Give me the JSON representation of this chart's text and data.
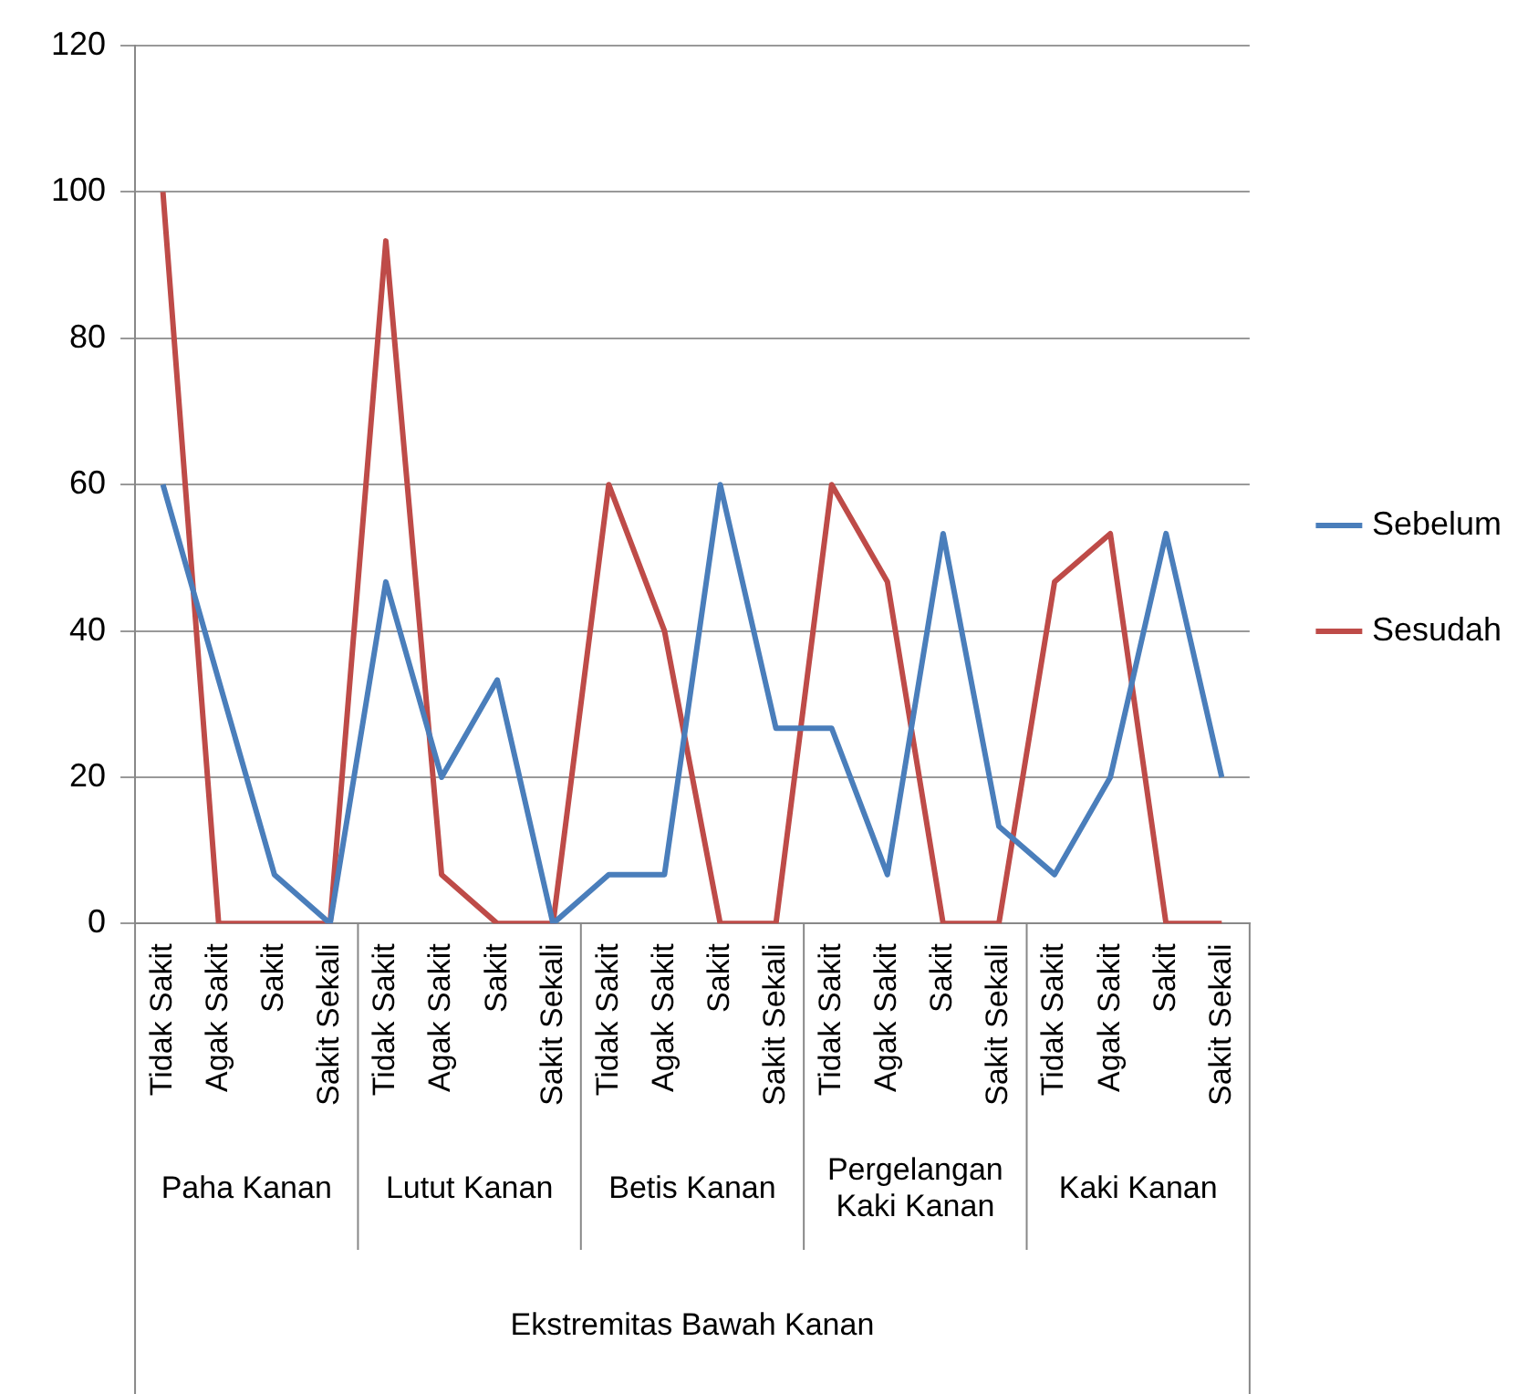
{
  "chart_data": {
    "type": "line",
    "categories": [
      "Tidak Sakit",
      "Agak Sakit",
      "Sakit",
      "Sakit Sekali",
      "Tidak Sakit",
      "Agak Sakit",
      "Sakit",
      "Sakit Sekali",
      "Tidak Sakit",
      "Agak Sakit",
      "Sakit",
      "Sakit Sekali",
      "Tidak Sakit",
      "Agak Sakit",
      "Sakit",
      "Sakit Sekali",
      "Tidak Sakit",
      "Agak Sakit",
      "Sakit",
      "Sakit Sekali"
    ],
    "annotations": [
      "Paha Kanan",
      "Lutut Kanan",
      "Betis Kanan",
      "Pergelangan Kaki Kanan",
      "Kaki Kanan",
      "Ekstremitas Bawah Kanan"
    ],
    "series": [
      {
        "name": "Sebelum",
        "color": "#4a7ebb",
        "values": [
          60,
          33.3,
          6.7,
          0,
          46.7,
          20,
          33.3,
          0,
          6.7,
          6.7,
          60,
          26.7,
          26.7,
          6.7,
          53.3,
          13.3,
          6.7,
          20,
          53.3,
          20
        ]
      },
      {
        "name": "Sesudah",
        "color": "#be4b48",
        "values": [
          100,
          0,
          0,
          0,
          93.3,
          6.7,
          0,
          0,
          60,
          40,
          0,
          0,
          60,
          46.7,
          0,
          0,
          46.7,
          53.3,
          0,
          0
        ]
      }
    ],
    "ylim": [
      0,
      120
    ],
    "yticks": [
      0,
      20,
      40,
      60,
      80,
      100,
      120
    ],
    "grid": "y",
    "legend": "right",
    "marker": "none",
    "line_style": "solid"
  }
}
